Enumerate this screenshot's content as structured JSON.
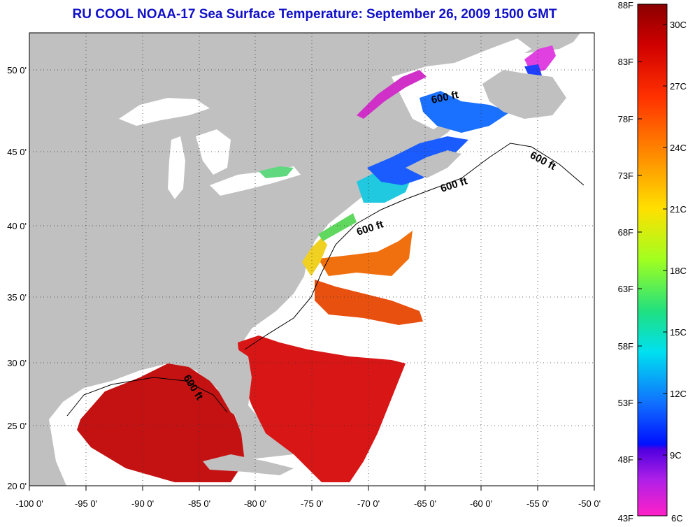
{
  "title": "RU COOL  NOAA-17  Sea Surface Temperature:  September 26, 2009 1500 GMT",
  "lon_ticks": [
    "-100 0'",
    "-95 0'",
    "-90 0'",
    "-85 0'",
    "-80 0'",
    "-75 0'",
    "-70 0'",
    "-65 0'",
    "-60 0'",
    "-55 0'",
    "-50 0'"
  ],
  "lat_ticks": [
    "50 0'",
    "45 0'",
    "40 0'",
    "35 0'",
    "30 0'",
    "25 0'",
    "20 0'"
  ],
  "isobath_labels": [
    "600 ft",
    "600 ft",
    "600 ft",
    "600 ft",
    "600 ft"
  ],
  "colorbar": {
    "f_labels": [
      "88F",
      "83F",
      "78F",
      "73F",
      "68F",
      "63F",
      "58F",
      "53F",
      "48F",
      "43F"
    ],
    "c_labels": [
      "30C",
      "27C",
      "24C",
      "21C",
      "18C",
      "15C",
      "12C",
      "9C",
      "6C"
    ]
  },
  "colors": {
    "title": "#1010c8",
    "land": "#c0c0c0",
    "water_nodata": "#ffffff",
    "warm": "#c81010",
    "cool": "#1a5cff"
  }
}
